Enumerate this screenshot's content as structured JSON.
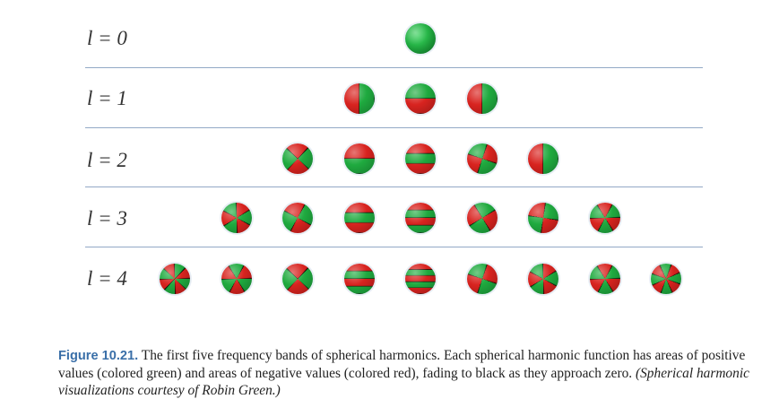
{
  "figure": {
    "bands": [
      {
        "label": "l = 0",
        "count": 1
      },
      {
        "label": "l = 1",
        "count": 3
      },
      {
        "label": "l = 2",
        "count": 5
      },
      {
        "label": "l = 3",
        "count": 7
      },
      {
        "label": "l = 4",
        "count": 9
      }
    ],
    "colors": {
      "positive": "#1faa3f",
      "negative": "#d8231f",
      "zero": "#000000",
      "rule": "#93a9c6",
      "caption_label": "#3a6fa8"
    }
  },
  "caption": {
    "label": "Figure 10.21.",
    "text": " The first five frequency bands of spherical harmonics. Each spherical harmonic function has areas of positive values (colored green) and areas of negative values (colored red), fading to black as they approach zero. ",
    "credit": "(Spherical harmonic visualizations courtesy of Robin Green.)"
  }
}
